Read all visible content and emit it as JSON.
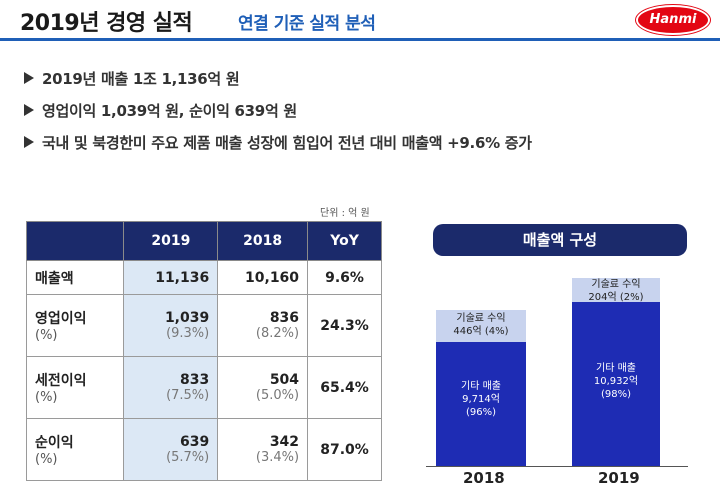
{
  "header": {
    "title": "2019년 경영 실적",
    "subtitle": "연결 기준 실적 분석",
    "logo_text": "Hanmi"
  },
  "bullets": [
    "2019년 매출 1조 1,136억 원",
    "영업이익 1,039억 원, 순이익 639억 원",
    "국내 및 북경한미 주요 제품 매출 성장에 힘입어 전년 대비 매출액 +9.6% 증가"
  ],
  "table": {
    "unit": "단위 : 억 원",
    "headers": [
      "",
      "2019",
      "2018",
      "YoY"
    ],
    "rows": [
      {
        "label": "매출액",
        "sub": "",
        "v2019": "11,136",
        "p2019": "",
        "v2018": "10,160",
        "p2018": "",
        "yoy": "9.6%"
      },
      {
        "label": "영업이익",
        "sub": "(%)",
        "v2019": "1,039",
        "p2019": "(9.3%)",
        "v2018": "836",
        "p2018": "(8.2%)",
        "yoy": "24.3%"
      },
      {
        "label": "세전이익",
        "sub": "(%)",
        "v2019": "833",
        "p2019": "(7.5%)",
        "v2018": "504",
        "p2018": "(5.0%)",
        "yoy": "65.4%"
      },
      {
        "label": "순이익",
        "sub": "(%)",
        "v2019": "639",
        "p2019": "(5.7%)",
        "v2018": "342",
        "p2018": "(3.4%)",
        "yoy": "87.0%"
      }
    ]
  },
  "composition": {
    "title": "매출액 구성",
    "bars": [
      {
        "year": "2018",
        "top": {
          "name": "기술료 수익",
          "value": "446억 (4%)"
        },
        "bottom": {
          "name": "기타 매출",
          "value": "9,714억",
          "share": "(96%)"
        }
      },
      {
        "year": "2019",
        "top": {
          "name": "기술료 수익",
          "value": "204억 (2%)"
        },
        "bottom": {
          "name": "기타 매출",
          "value": "10,932억",
          "share": "(98%)"
        }
      }
    ]
  },
  "colors": {
    "navy": "#1b2a6b",
    "accent_blue": "#1f5fb7",
    "bar_dark": "#1e2cb4",
    "bar_light": "#c8d3ee",
    "logo_red": "#e30613"
  }
}
